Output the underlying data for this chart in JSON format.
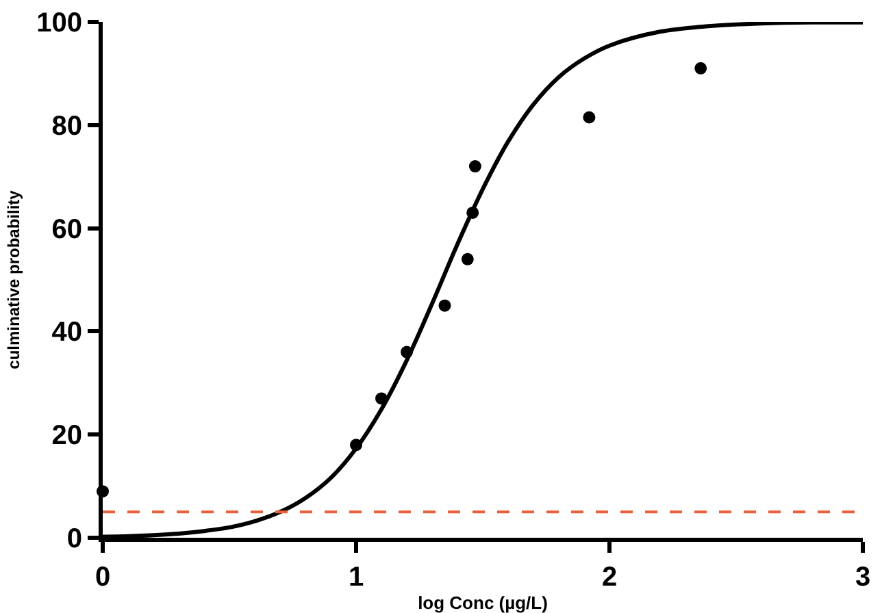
{
  "chart_data": {
    "type": "scatter",
    "xlabel": "log Conc (µg/L)",
    "ylabel": "culminative probability",
    "xlim": [
      0,
      3
    ],
    "xticks": [
      0,
      1,
      2,
      3
    ],
    "ylim": [
      0,
      100
    ],
    "yticks": [
      0,
      20,
      40,
      60,
      80,
      100
    ],
    "grid": false,
    "legend": false,
    "series": [
      {
        "color": "#000000",
        "marker": "circle",
        "x": [
          0,
          1.0,
          1.1,
          1.2,
          1.35,
          1.44,
          1.46,
          1.47,
          1.92,
          2.36
        ],
        "values": [
          9,
          18,
          27,
          36,
          45,
          54,
          63,
          72,
          81.5,
          91
        ]
      },
      {
        "type": "line",
        "color": "#000000",
        "marker": "none",
        "line_style": "solid",
        "x": [
          0,
          0.1,
          0.2,
          0.3,
          0.4,
          0.5,
          0.6,
          0.7,
          0.8,
          0.9,
          1.0,
          1.1,
          1.2,
          1.3,
          1.4,
          1.5,
          1.6,
          1.7,
          1.8,
          1.9,
          2.0,
          2.2,
          2.4,
          2.6,
          2.8,
          3.0
        ],
        "values": [
          0.2,
          0.3,
          0.5,
          0.8,
          1.3,
          2.0,
          3.2,
          5.0,
          7.7,
          11.6,
          17.3,
          24.9,
          34.4,
          45.4,
          56.9,
          67.6,
          76.8,
          84.0,
          89.3,
          92.9,
          95.4,
          98.1,
          99.2,
          99.7,
          99.9,
          99.9
        ]
      }
    ],
    "ref_lines": [
      {
        "axis": "y",
        "value": 5,
        "color": "#e8603c",
        "line_style": "dashed"
      }
    ]
  }
}
